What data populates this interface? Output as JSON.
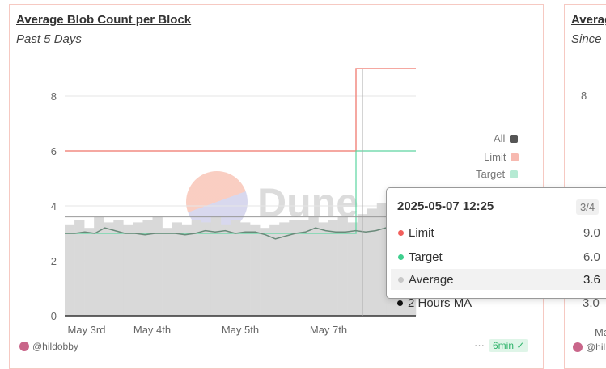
{
  "panel": {
    "title": "Average Blob Count per Block",
    "subtitle": "Past 5 Days",
    "author": "@hildobby",
    "more": "···",
    "refresh": "6min"
  },
  "panel2": {
    "title": "Averag",
    "subtitle": "Since",
    "tick": "8",
    "tick2": "Ma",
    "author": "@hil"
  },
  "legend": [
    {
      "label": "All",
      "color": "#555555"
    },
    {
      "label": "Limit",
      "color": "#f7b9b0"
    },
    {
      "label": "Target",
      "color": "#b5ead3"
    }
  ],
  "colors": {
    "limit": "#f28b82",
    "target": "#5ad6a0",
    "average": "#cfcfcf",
    "ma": "#6a8a7a"
  },
  "chart_data": {
    "type": "bar+line",
    "yticks": [
      "0",
      "2",
      "4",
      "6",
      "8"
    ],
    "ylim": [
      0,
      9
    ],
    "xticks": [
      "May 3rd",
      "May 4th",
      "May 5th",
      "May 7th"
    ],
    "limit": {
      "before": 6,
      "after": 9
    },
    "target": {
      "before": 3,
      "after": 6
    },
    "ma": [
      3.0,
      3.0,
      3.05,
      3.0,
      3.2,
      3.1,
      3.0,
      3.0,
      2.95,
      3.0,
      3.0,
      3.0,
      2.95,
      3.0,
      3.1,
      3.05,
      3.1,
      3.0,
      3.05,
      3.05,
      2.95,
      2.8,
      2.9,
      3.0,
      3.05,
      3.2,
      3.1,
      3.05,
      3.05,
      3.1,
      3.05,
      3.1,
      3.2,
      3.3,
      3.35,
      3.4
    ],
    "average": [
      3.3,
      3.5,
      3.2,
      3.6,
      3.4,
      3.5,
      3.3,
      3.4,
      3.5,
      3.6,
      3.2,
      3.4,
      3.3,
      3.5,
      3.4,
      3.6,
      3.3,
      3.5,
      3.4,
      3.3,
      3.2,
      3.3,
      3.4,
      3.5,
      3.5,
      3.6,
      3.4,
      3.5,
      3.6,
      3.4,
      3.7,
      3.9,
      4.1,
      4.3,
      4.5,
      4.6
    ]
  },
  "tooltip": {
    "time": "2025-05-07 12:25",
    "page": "3/4",
    "rows": [
      {
        "label": "Limit",
        "value": "9.0",
        "color": "#f25f5c"
      },
      {
        "label": "Target",
        "value": "6.0",
        "color": "#3ecf8e"
      },
      {
        "label": "Average",
        "value": "3.6",
        "color": "#c8c8c8"
      },
      {
        "label": "2 Hours MA",
        "value": "3.0",
        "color": "#111111"
      }
    ]
  }
}
